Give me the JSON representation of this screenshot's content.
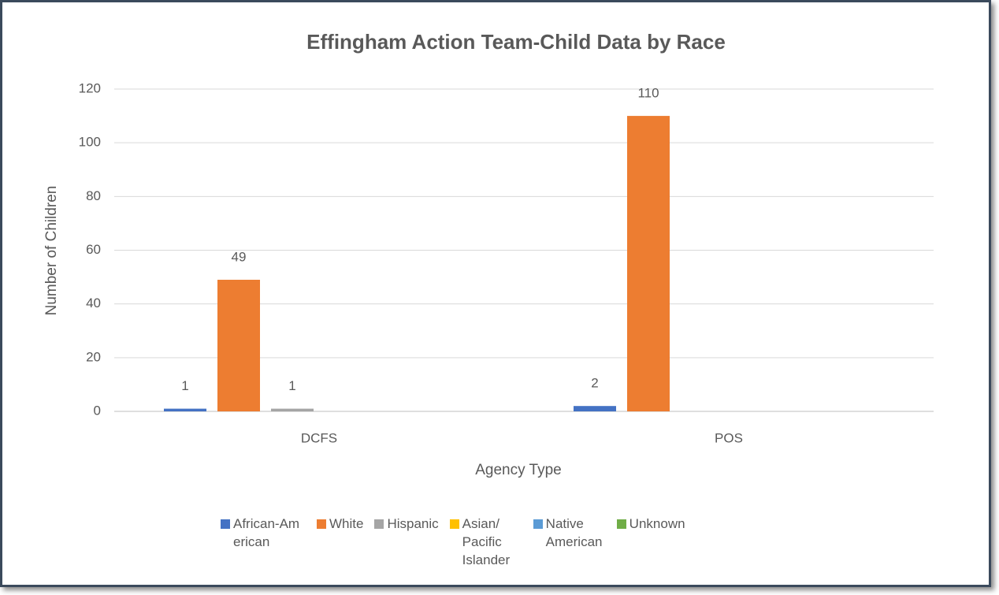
{
  "chart_data": {
    "type": "bar",
    "title": "Effingham Action Team-Child Data by Race",
    "x_label": "Agency Type",
    "y_label": "Number of Children",
    "categories": [
      "DCFS",
      "POS"
    ],
    "series": [
      {
        "name": "African-American",
        "color": "#4472c4",
        "values": [
          1,
          2
        ]
      },
      {
        "name": "White",
        "color": "#ed7d31",
        "values": [
          49,
          110
        ]
      },
      {
        "name": "Hispanic",
        "color": "#a5a5a5",
        "values": [
          1,
          null
        ]
      },
      {
        "name": "Asian/ Pacific Islander",
        "color": "#ffc000",
        "values": [
          null,
          null
        ]
      },
      {
        "name": "Native American",
        "color": "#5b9bd5",
        "values": [
          null,
          null
        ]
      },
      {
        "name": "Unknown",
        "color": "#70ad47",
        "values": [
          null,
          null
        ]
      }
    ],
    "ylim": [
      0,
      120
    ],
    "yticks": [
      0,
      20,
      40,
      60,
      80,
      100,
      120
    ],
    "grid": true,
    "legend": "bottom"
  }
}
